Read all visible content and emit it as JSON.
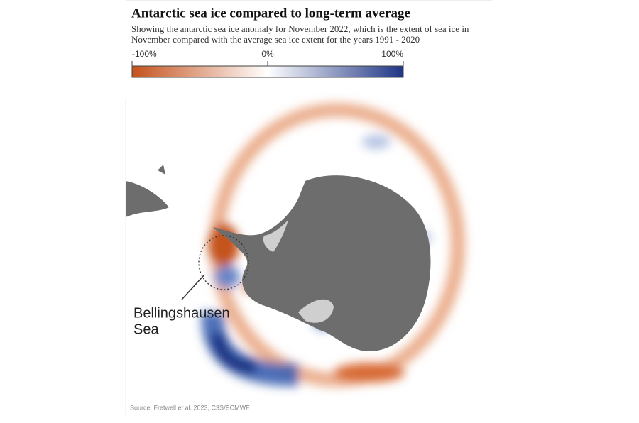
{
  "header": {
    "title": "Antarctic sea ice compared to long-term average",
    "subtitle": [
      "Showing the antarctic sea ice anomaly for November 2022, which is the extent of sea ice in",
      "November compared with the average sea ice extent for the years 1991 - 2020"
    ]
  },
  "legend": {
    "range": [
      -100,
      100
    ],
    "colors": [
      "#c4521d",
      "#ffffff",
      "#1f3585"
    ],
    "ticks": [
      {
        "value": -100,
        "label": "-100%"
      },
      {
        "value": 0,
        "label": "0%"
      },
      {
        "value": 100,
        "label": "100%"
      }
    ]
  },
  "annotation": {
    "lines": [
      "Bellingshausen",
      "Sea"
    ]
  },
  "source": "Source: Fretwell et al. 2023, C3S/ECMWF"
}
